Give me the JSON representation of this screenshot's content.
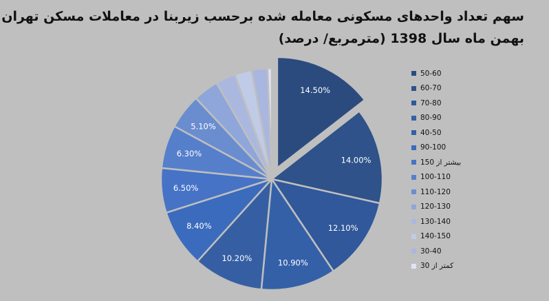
{
  "chart_data": {
    "type": "pie",
    "title_lines": [
      "سهم تعداد واحدهای مسکونی معامله شده برحسب زیربنا در معاملات مسکن تهران در",
      "بهمن ماه سال 1398 (مترمربع/ درصد)"
    ],
    "categories": [
      "50-60",
      "60-70",
      "70-80",
      "80-90",
      "40-50",
      "90-100",
      "بیشتر از 150",
      "100-110",
      "110-120",
      "120-130",
      "130-140",
      "140-150",
      "30-40",
      "کمتر از 30"
    ],
    "values": [
      14.5,
      14.0,
      12.1,
      10.9,
      10.2,
      8.4,
      6.5,
      6.3,
      5.1,
      3.7,
      2.9,
      2.5,
      2.3,
      0.6
    ],
    "data_labels": [
      "14.50%",
      "14.00%",
      "12.10%",
      "10.90%",
      "10.20%",
      "8.40%",
      "6.50%",
      "6.30%",
      "5.10%",
      "",
      "",
      "",
      "",
      ""
    ],
    "colors": [
      "#2b4b7f",
      "#2e5289",
      "#30589a",
      "#3460a8",
      "#365fa3",
      "#3b6bbd",
      "#4673c6",
      "#567fcb",
      "#6a8dd0",
      "#8fa6da",
      "#aab8e0",
      "#c0cbe7",
      "#a9b6df",
      "#dfe4f2"
    ],
    "exploded": "50-60",
    "legend_position": "right"
  }
}
